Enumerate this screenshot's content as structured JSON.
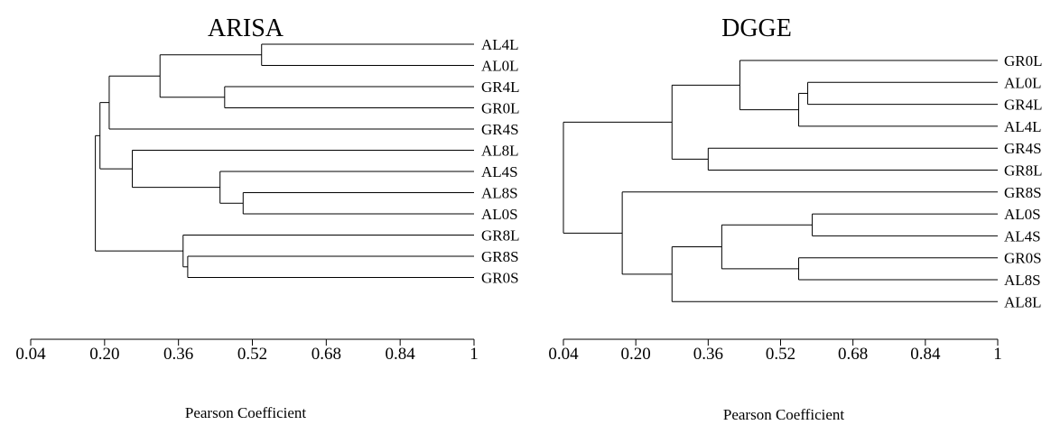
{
  "chart_data": [
    {
      "type": "dendrogram",
      "title": "ARISA",
      "xlabel": "Pearson Coefficient",
      "xlim": [
        0.04,
        1
      ],
      "xticks": [
        "0.04",
        "0.20",
        "0.36",
        "0.52",
        "0.68",
        "0.84",
        "1"
      ],
      "leaves": [
        "AL4L",
        "AL0L",
        "GR4L",
        "GR0L",
        "GR4S",
        "AL8L",
        "AL4S",
        "AL8S",
        "AL0S",
        "GR8L",
        "GR8S",
        "GR0S"
      ],
      "merges": [
        {
          "a": "AL4L",
          "b": "AL0L",
          "value": 0.54
        },
        {
          "a": "GR4L",
          "b": "GR0L",
          "value": 0.46
        },
        {
          "a": 0,
          "b": 1,
          "value": 0.32
        },
        {
          "a": "GR4S",
          "b": 2,
          "value": 0.21
        },
        {
          "a": "AL8S",
          "b": "AL0S",
          "value": 0.5
        },
        {
          "a": "AL4S",
          "b": 4,
          "value": 0.45
        },
        {
          "a": "AL8L",
          "b": 5,
          "value": 0.26
        },
        {
          "a": 3,
          "b": 6,
          "value": 0.19
        },
        {
          "a": "GR8S",
          "b": "GR0S",
          "value": 0.38
        },
        {
          "a": "GR8L",
          "b": 8,
          "value": 0.37
        },
        {
          "a": 7,
          "b": 9,
          "value": 0.18
        }
      ]
    },
    {
      "type": "dendrogram",
      "title": "DGGE",
      "xlabel": "Pearson Coefficient",
      "xlim": [
        0.04,
        1
      ],
      "xticks": [
        "0.04",
        "0.20",
        "0.36",
        "0.52",
        "0.68",
        "0.84",
        "1"
      ],
      "leaves": [
        "GR0L",
        "AL0L",
        "GR4L",
        "AL4L",
        "GR4S",
        "GR8L",
        "GR8S",
        "AL0S",
        "AL4S",
        "GR0S",
        "AL8S",
        "AL8L"
      ],
      "merges": [
        {
          "a": "AL0L",
          "b": "GR4L",
          "value": 0.58
        },
        {
          "a": 0,
          "b": "AL4L",
          "value": 0.56
        },
        {
          "a": "GR0L",
          "b": 1,
          "value": 0.43
        },
        {
          "a": "GR4S",
          "b": "GR8L",
          "value": 0.36
        },
        {
          "a": 2,
          "b": 3,
          "value": 0.28
        },
        {
          "a": "AL0S",
          "b": "AL4S",
          "value": 0.59
        },
        {
          "a": "GR0S",
          "b": "AL8S",
          "value": 0.56
        },
        {
          "a": 5,
          "b": 6,
          "value": 0.39
        },
        {
          "a": 7,
          "b": "AL8L",
          "value": 0.28
        },
        {
          "a": "GR8S",
          "b": 8,
          "value": 0.17
        },
        {
          "a": 4,
          "b": 9,
          "value": 0.04
        }
      ]
    }
  ]
}
